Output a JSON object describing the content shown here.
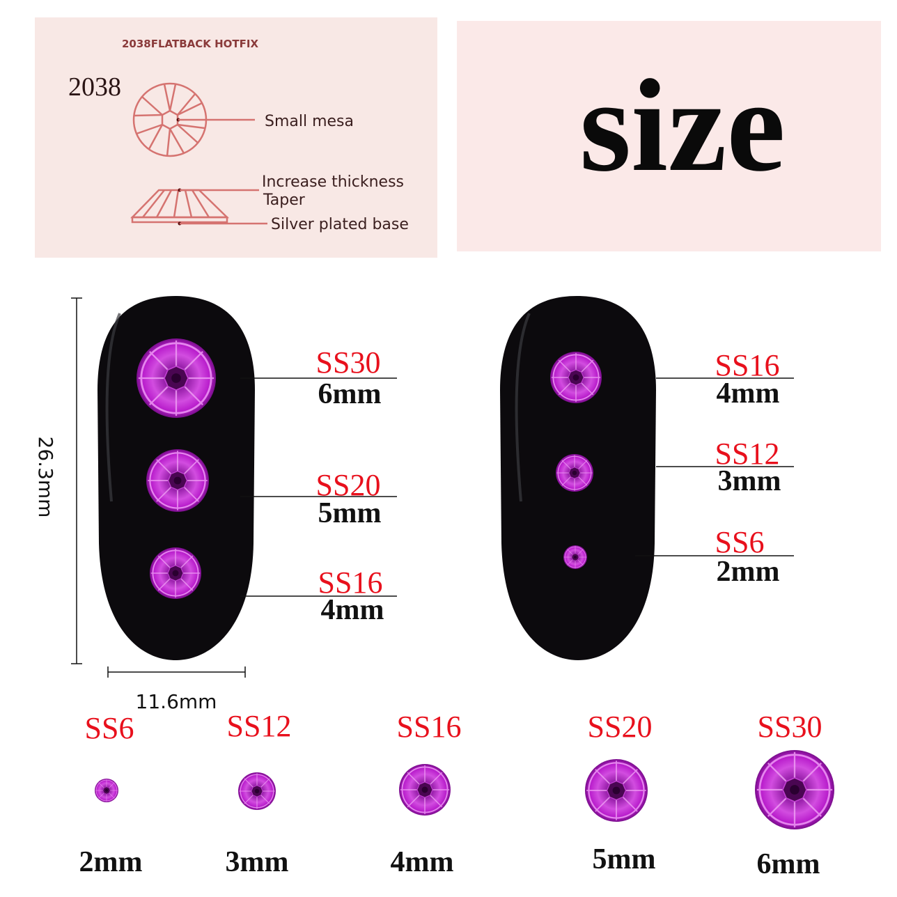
{
  "diagram_panel": {
    "heading": "2038FLATBACK HOTFIX",
    "model": "2038",
    "labels": [
      "Small mesa",
      "Increase thickness",
      "Taper",
      "Silver plated base"
    ],
    "background": "#f8e8e5",
    "line_color": "#d57370"
  },
  "title_panel": {
    "title": "size",
    "background": "#fbe9e8"
  },
  "dimensions": {
    "height": "26.3mm",
    "width": "11.6mm"
  },
  "nail_left": [
    {
      "ss": "SS30",
      "mm": "6mm"
    },
    {
      "ss": "SS20",
      "mm": "5mm"
    },
    {
      "ss": "SS16",
      "mm": "4mm"
    }
  ],
  "nail_right": [
    {
      "ss": "SS16",
      "mm": "4mm"
    },
    {
      "ss": "SS12",
      "mm": "3mm"
    },
    {
      "ss": "SS6",
      "mm": "2mm"
    }
  ],
  "size_chart": [
    {
      "ss": "SS6",
      "mm": "2mm"
    },
    {
      "ss": "SS12",
      "mm": "3mm"
    },
    {
      "ss": "SS16",
      "mm": "4mm"
    },
    {
      "ss": "SS20",
      "mm": "5mm"
    },
    {
      "ss": "SS30",
      "mm": "6mm"
    }
  ],
  "colors": {
    "ss_label": "#e8101c",
    "gem": "#c21fd3",
    "nail": "#0c0a0d"
  }
}
